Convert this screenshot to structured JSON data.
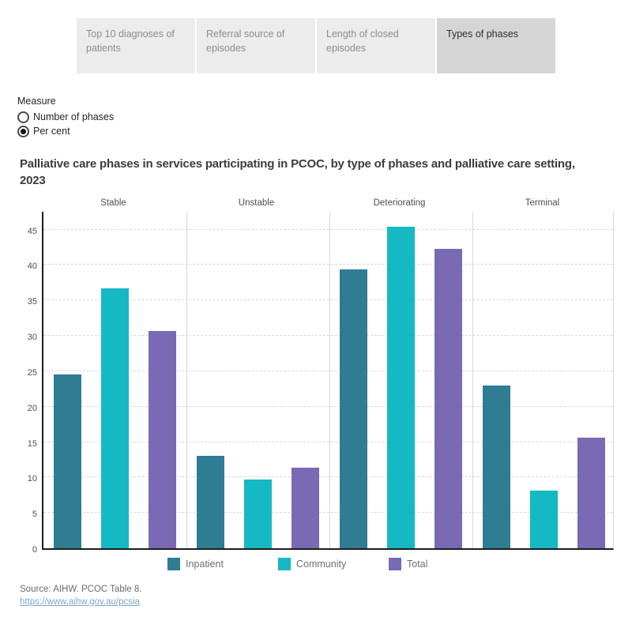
{
  "tabs": [
    {
      "label": "Top 10 diagnoses of patients",
      "selected": false
    },
    {
      "label": "Referral source of episodes",
      "selected": false
    },
    {
      "label": "Length of closed episodes",
      "selected": false
    },
    {
      "label": "Types of phases",
      "selected": true
    }
  ],
  "measure": {
    "label": "Measure",
    "options": [
      {
        "label": "Number of phases",
        "selected": false
      },
      {
        "label": "Per cent",
        "selected": true
      }
    ]
  },
  "title": "Palliative care phases in services participating in PCOC, by type of phases and palliative care setting, 2023",
  "chart_data": {
    "type": "bar",
    "categories": [
      "Stable",
      "Unstable",
      "Deteriorating",
      "Terminal"
    ],
    "series": [
      {
        "name": "Inpatient",
        "color": "#2e7d92",
        "values": [
          24.6,
          13.0,
          39.4,
          23.0
        ]
      },
      {
        "name": "Community",
        "color": "#15b9c4",
        "values": [
          36.7,
          9.7,
          45.4,
          8.2
        ]
      },
      {
        "name": "Total",
        "color": "#7a69b4",
        "values": [
          30.7,
          11.4,
          42.3,
          15.6
        ]
      }
    ],
    "xlabel": "",
    "ylabel": "",
    "yticks": [
      0,
      5,
      10,
      15,
      20,
      25,
      30,
      35,
      40,
      45
    ],
    "ylim": [
      0,
      47.75
    ],
    "grid": "horizontal-dashed",
    "legend_position": "bottom",
    "unit": "per cent"
  },
  "source": {
    "text": "Source: AIHW. PCOC Table 8.",
    "link": "https://www.aihw.gov.au/pcsia"
  },
  "colors": {
    "inpatient": "#2e7d92",
    "community": "#15b9c4",
    "total": "#7a69b4",
    "tab_bg": "#ececec",
    "tab_selected_bg": "#d5d5d5",
    "axis": "#1c1c1c",
    "gridline": "#d8d8d8",
    "link": "#7ca7c9"
  }
}
